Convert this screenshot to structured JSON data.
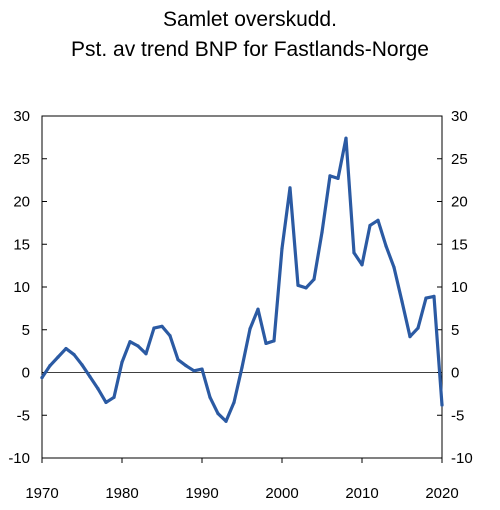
{
  "chart_data": {
    "type": "line",
    "title": [
      "Samlet overskudd.",
      "Pst. av trend BNP for Fastlands-Norge"
    ],
    "xlabel": "",
    "ylabel": "",
    "xlim": [
      1970,
      2020
    ],
    "ylim": [
      -10,
      30
    ],
    "xticks": [
      1970,
      1980,
      1990,
      2000,
      2010,
      2020
    ],
    "yticks": [
      -10,
      -5,
      0,
      5,
      10,
      15,
      20,
      25,
      30
    ],
    "grid": false,
    "legend": "none",
    "line_color": "#2b5aa3",
    "series": [
      {
        "x": [
          1970,
          1971,
          1972,
          1973,
          1974,
          1975,
          1976,
          1977,
          1978,
          1979,
          1980,
          1981,
          1982,
          1983,
          1984,
          1985,
          1986,
          1987,
          1988,
          1989,
          1990,
          1991,
          1992,
          1993,
          1994,
          1995,
          1996,
          1997,
          1998,
          1999,
          2000,
          2001,
          2002,
          2003,
          2004,
          2005,
          2006,
          2007,
          2008,
          2009,
          2010,
          2011,
          2012,
          2013,
          2014,
          2015,
          2016,
          2017,
          2018,
          2019,
          2020
        ],
        "values": [
          -0.6,
          0.8,
          1.8,
          2.8,
          2.1,
          0.9,
          -0.5,
          -1.9,
          -3.5,
          -2.9,
          1.2,
          3.6,
          3.1,
          2.2,
          5.2,
          5.4,
          4.3,
          1.5,
          0.8,
          0.2,
          0.4,
          -2.9,
          -4.8,
          -5.7,
          -3.5,
          0.6,
          5.1,
          7.4,
          3.4,
          3.7,
          14.5,
          21.6,
          10.2,
          9.9,
          10.9,
          16.4,
          23.0,
          22.7,
          27.4,
          14.0,
          12.6,
          17.2,
          17.8,
          14.8,
          12.3,
          8.3,
          4.2,
          5.2,
          8.7,
          8.9,
          -3.8
        ]
      }
    ]
  }
}
